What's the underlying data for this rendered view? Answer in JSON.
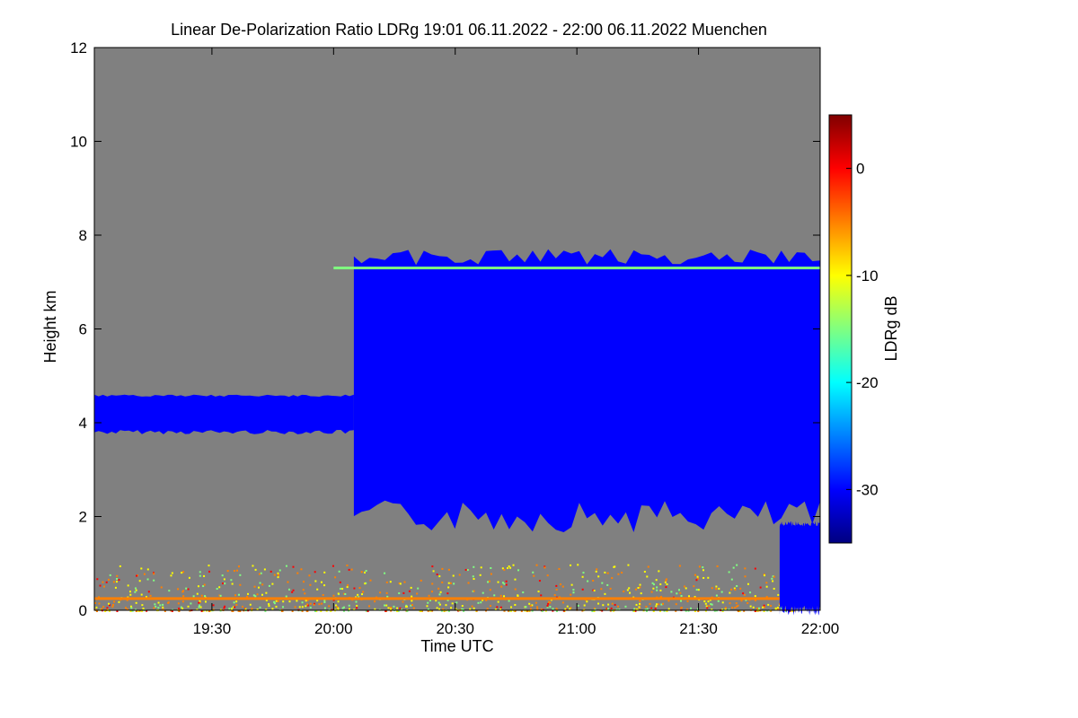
{
  "chart_data": {
    "type": "heatmap",
    "title": "Linear De-Polarization Ratio LDRg   19:01 06.11.2022 - 22:00 06.11.2022 Muenchen",
    "xlabel": "Time UTC",
    "ylabel": "Height km",
    "x_range": [
      "19:01",
      "22:00"
    ],
    "x_ticks": [
      "19:30",
      "20:00",
      "20:30",
      "21:00",
      "21:30",
      "22:00"
    ],
    "y_range": [
      0,
      12
    ],
    "y_ticks": [
      "0",
      "2",
      "4",
      "6",
      "8",
      "10",
      "12"
    ],
    "colorbar": {
      "label": "LDRg dB",
      "range": [
        -35,
        5
      ],
      "ticks": [
        "0",
        "-10",
        "-20",
        "-30"
      ],
      "colors": [
        "#000080",
        "#0000ff",
        "#0080ff",
        "#00ffff",
        "#80ff80",
        "#ffff00",
        "#ff8000",
        "#ff0000",
        "#800000"
      ]
    },
    "background_color": "#808080",
    "features": [
      {
        "name": "low cloud layer",
        "time_start": "19:01",
        "time_end": "20:05",
        "height_bottom_km": 3.8,
        "height_top_km": 4.6,
        "ldr_db": -30
      },
      {
        "name": "deep cloud",
        "time_start": "20:05",
        "time_end": "22:00",
        "height_bottom_km": 2.0,
        "height_top_km": 7.7,
        "ldr_db": -31
      },
      {
        "name": "liquid layer at cloud top",
        "time_start": "20:00",
        "time_end": "22:00",
        "height_km": 7.3,
        "ldr_db": -15
      },
      {
        "name": "near-surface aerosol",
        "time_start": "19:01",
        "time_end": "21:55",
        "height_bottom_km": 0.0,
        "height_top_km": 1.0,
        "ldr_db": -8
      },
      {
        "name": "precipitation",
        "time_start": "21:50",
        "time_end": "22:00",
        "height_bottom_km": 0.0,
        "height_top_km": 1.9,
        "ldr_db": -30
      }
    ]
  }
}
